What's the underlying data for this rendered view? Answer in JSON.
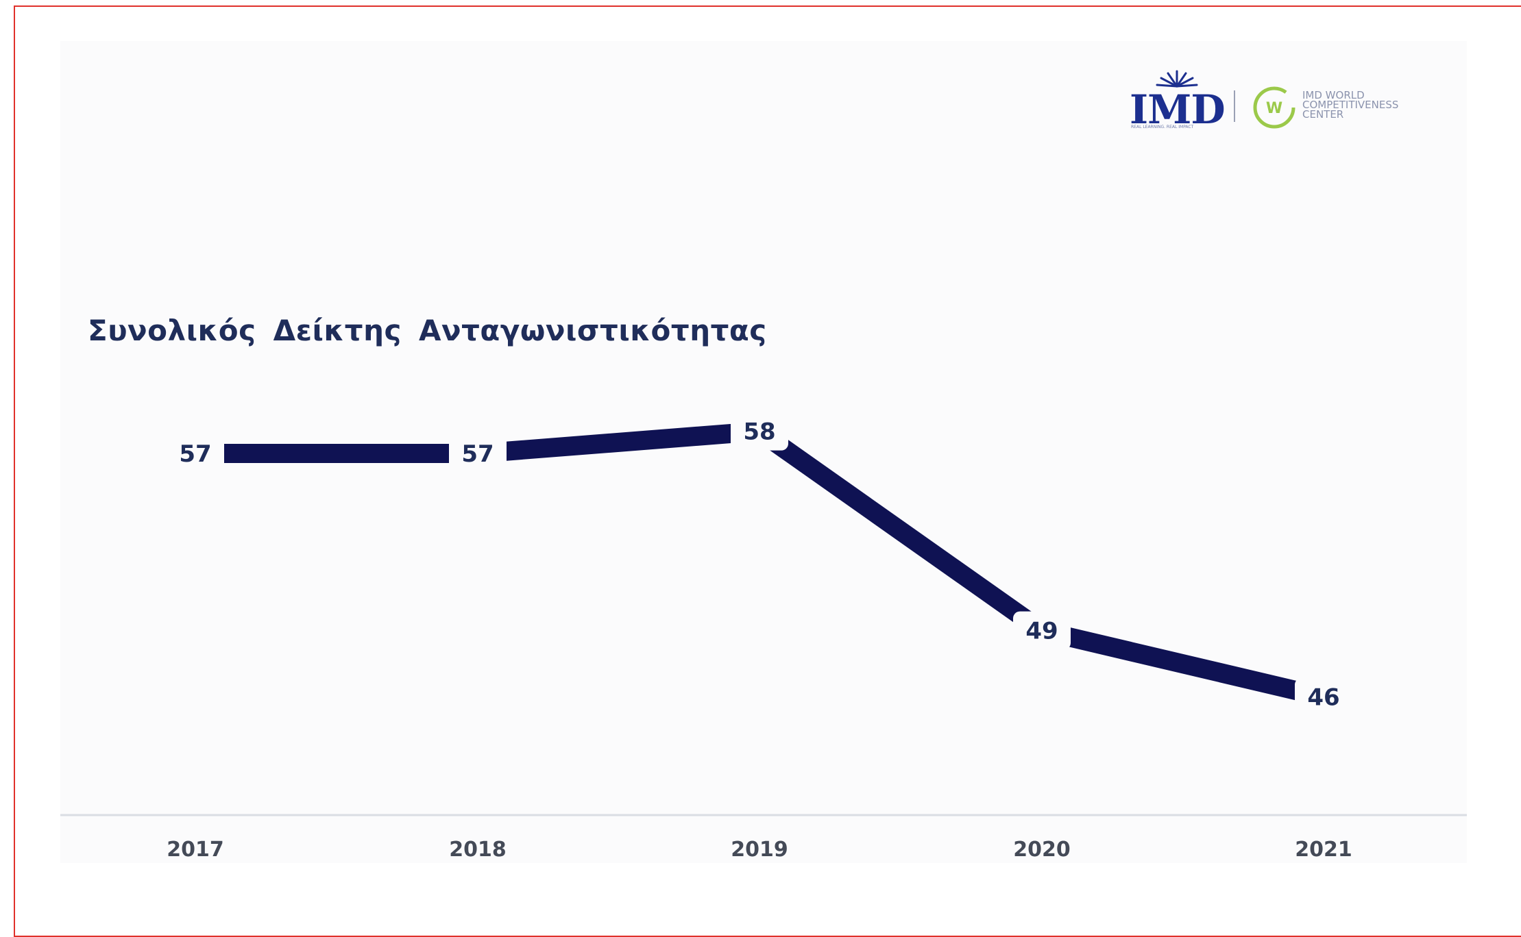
{
  "header": {
    "logo_word": "IMD",
    "logo_tagline": "REAL LEARNING. REAL IMPACT",
    "wcc_lines": "IMD WORLD\nCOMPETITIVENESS\nCENTER"
  },
  "chart_data": {
    "type": "line",
    "title": "Συνολικός Δείκτης Ανταγωνιστικότητας",
    "categories": [
      "2017",
      "2018",
      "2019",
      "2020",
      "2021"
    ],
    "series": [
      {
        "values": [
          57,
          57,
          58,
          49,
          46
        ]
      }
    ],
    "y_axis": "inverted (rank, lower is better)",
    "ylim": [
      45,
      60
    ],
    "grid": false,
    "legend": "none",
    "colors": {
      "line": "#0f1253",
      "title": "#1f2d5a",
      "tick": "#444a57",
      "frame": "#e0312b"
    }
  }
}
